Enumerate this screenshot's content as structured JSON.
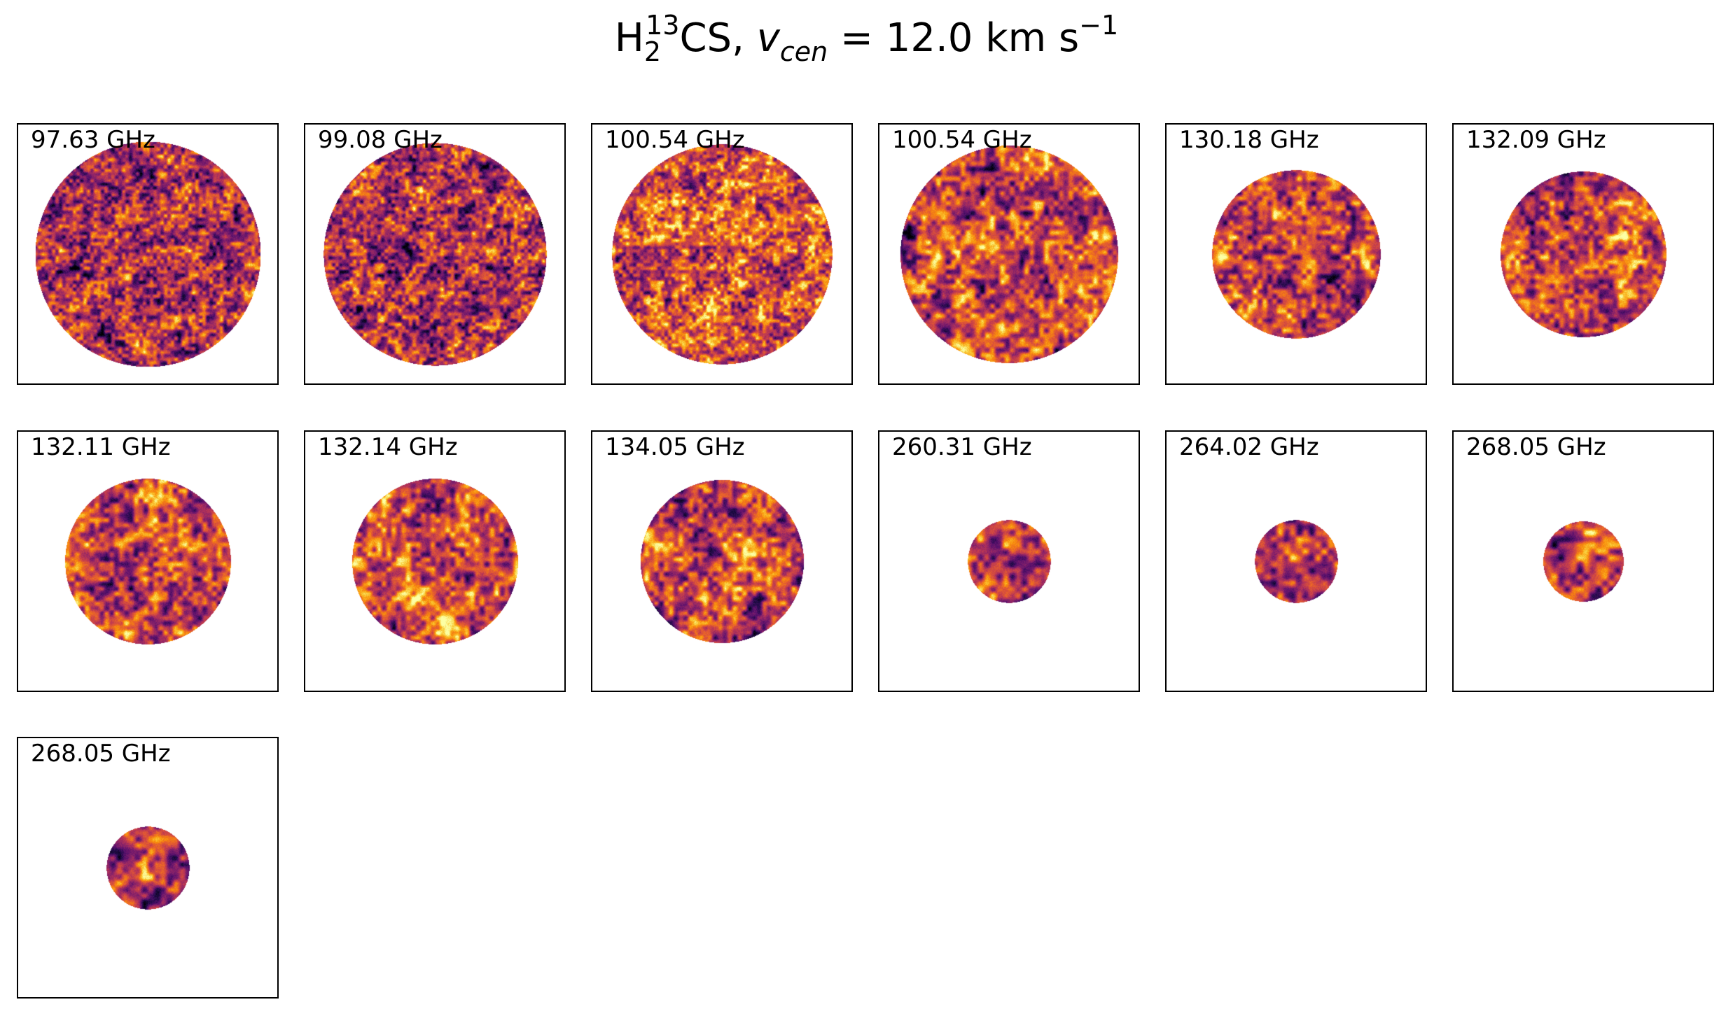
{
  "chart_data": {
    "type": "heatmap",
    "title": {
      "species_prefix": "H",
      "species_sub": "2",
      "species_sup": "13",
      "species_suffix": "CS, ",
      "var": "v",
      "var_sub": "cen",
      "value_text": " =  12.0 km s",
      "unit_sup": "−1"
    },
    "colormap": "inferno",
    "grid": false,
    "layout": {
      "rows": 3,
      "cols": 6
    },
    "panels": [
      {
        "label": "97.63 GHz",
        "disk_fraction": 0.87,
        "mean_level": 0.42,
        "noise_scale": "fine"
      },
      {
        "label": "99.08 GHz",
        "disk_fraction": 0.86,
        "mean_level": 0.44,
        "noise_scale": "fine"
      },
      {
        "label": "100.54 GHz",
        "disk_fraction": 0.85,
        "mean_level": 0.6,
        "noise_scale": "fine"
      },
      {
        "label": "100.54 GHz",
        "disk_fraction": 0.84,
        "mean_level": 0.52,
        "noise_scale": "medium"
      },
      {
        "label": "130.18 GHz",
        "disk_fraction": 0.65,
        "mean_level": 0.48,
        "noise_scale": "medium"
      },
      {
        "label": "132.09 GHz",
        "disk_fraction": 0.64,
        "mean_level": 0.55,
        "noise_scale": "medium"
      },
      {
        "label": "132.11 GHz",
        "disk_fraction": 0.64,
        "mean_level": 0.48,
        "noise_scale": "medium"
      },
      {
        "label": "132.14 GHz",
        "disk_fraction": 0.64,
        "mean_level": 0.55,
        "noise_scale": "medium"
      },
      {
        "label": "134.05 GHz",
        "disk_fraction": 0.63,
        "mean_level": 0.48,
        "noise_scale": "medium"
      },
      {
        "label": "260.31 GHz",
        "disk_fraction": 0.32,
        "mean_level": 0.5,
        "noise_scale": "coarse"
      },
      {
        "label": "264.02 GHz",
        "disk_fraction": 0.32,
        "mean_level": 0.5,
        "noise_scale": "coarse"
      },
      {
        "label": "268.05 GHz",
        "disk_fraction": 0.31,
        "mean_level": 0.5,
        "noise_scale": "coarse"
      },
      {
        "label": "268.05 GHz",
        "disk_fraction": 0.32,
        "mean_level": 0.5,
        "noise_scale": "coarse"
      }
    ]
  }
}
